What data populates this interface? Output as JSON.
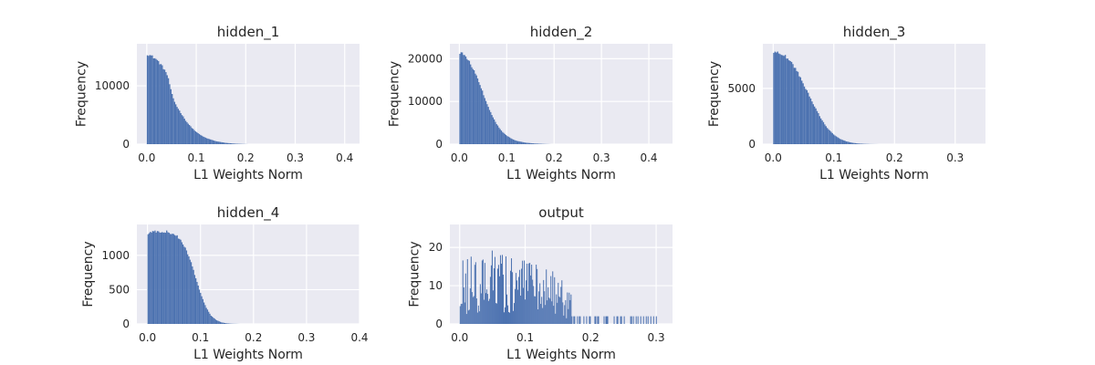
{
  "colors": {
    "plot_bg": "#EAEAF2",
    "grid": "#FFFFFF",
    "bar": "#4C72B0",
    "text": "#262626"
  },
  "chart_data": [
    {
      "type": "bar",
      "title": "hidden_1",
      "xlabel": "L1 Weights Norm",
      "ylabel": "Frequency",
      "xlim": [
        -0.02,
        0.43
      ],
      "ylim": [
        0,
        17200
      ],
      "xticks": [
        "0.0",
        "0.1",
        "0.2",
        "0.3",
        "0.4"
      ],
      "yticks": [
        "0",
        "10000"
      ],
      "grid": true,
      "histogram": {
        "bin_width": 0.0025,
        "x": [
          0,
          0.01,
          0.02,
          0.03,
          0.04,
          0.045,
          0.05,
          0.055,
          0.06,
          0.07,
          0.08,
          0.09,
          0.1,
          0.11,
          0.12,
          0.14,
          0.16,
          0.18,
          0.2,
          0.205
        ],
        "y": [
          15500,
          15100,
          14500,
          13500,
          12200,
          10800,
          8800,
          7500,
          6600,
          5200,
          3900,
          2900,
          2100,
          1500,
          1050,
          500,
          220,
          80,
          20,
          0
        ]
      }
    },
    {
      "type": "bar",
      "title": "hidden_2",
      "xlabel": "L1 Weights Norm",
      "ylabel": "Frequency",
      "xlim": [
        -0.02,
        0.45
      ],
      "ylim": [
        0,
        23500
      ],
      "xticks": [
        "0.0",
        "0.1",
        "0.2",
        "0.3",
        "0.4"
      ],
      "yticks": [
        "0",
        "10000",
        "20000"
      ],
      "grid": true,
      "histogram": {
        "bin_width": 0.0025,
        "x": [
          0,
          0.01,
          0.02,
          0.03,
          0.04,
          0.05,
          0.06,
          0.07,
          0.08,
          0.09,
          0.1,
          0.11,
          0.12,
          0.14,
          0.16,
          0.18,
          0.19,
          0.195
        ],
        "y": [
          21500,
          21000,
          19500,
          17500,
          15000,
          12000,
          9000,
          6500,
          4500,
          3000,
          2000,
          1300,
          800,
          350,
          150,
          50,
          15,
          0
        ]
      }
    },
    {
      "type": "bar",
      "title": "hidden_3",
      "xlabel": "L1 Weights Norm",
      "ylabel": "Frequency",
      "xlim": [
        -0.017,
        0.35
      ],
      "ylim": [
        0,
        9000
      ],
      "xticks": [
        "0.0",
        "0.1",
        "0.2",
        "0.3"
      ],
      "yticks": [
        "0",
        "5000"
      ],
      "grid": true,
      "histogram": {
        "bin_width": 0.0021,
        "x": [
          0,
          0.01,
          0.02,
          0.03,
          0.04,
          0.05,
          0.06,
          0.07,
          0.08,
          0.09,
          0.1,
          0.11,
          0.12,
          0.13,
          0.14,
          0.15,
          0.16,
          0.17,
          0.175
        ],
        "y": [
          8300,
          8200,
          7900,
          7300,
          6500,
          5400,
          4300,
          3200,
          2200,
          1400,
          850,
          480,
          260,
          130,
          60,
          30,
          12,
          4,
          0
        ]
      }
    },
    {
      "type": "bar",
      "title": "hidden_4",
      "xlabel": "L1 Weights Norm",
      "ylabel": "Frequency",
      "xlim": [
        -0.02,
        0.4
      ],
      "ylim": [
        0,
        1450
      ],
      "xticks": [
        "0.0",
        "0.1",
        "0.2",
        "0.3",
        "0.4"
      ],
      "yticks": [
        "0",
        "500",
        "1000"
      ],
      "grid": true,
      "histogram": {
        "bin_width": 0.0022,
        "x": [
          0,
          0.01,
          0.02,
          0.03,
          0.04,
          0.05,
          0.06,
          0.07,
          0.08,
          0.09,
          0.1,
          0.11,
          0.12,
          0.13,
          0.14,
          0.15,
          0.16,
          0.17,
          0.175
        ],
        "y": [
          1320,
          1340,
          1350,
          1350,
          1340,
          1310,
          1250,
          1130,
          950,
          700,
          450,
          250,
          120,
          55,
          22,
          8,
          3,
          1,
          0
        ]
      }
    },
    {
      "type": "bar",
      "title": "output",
      "xlabel": "L1 Weights Norm",
      "ylabel": "Frequency",
      "xlim": [
        -0.015,
        0.325
      ],
      "ylim": [
        0,
        26
      ],
      "xticks": [
        "0.0",
        "0.1",
        "0.2",
        "0.3"
      ],
      "yticks": [
        "0",
        "10",
        "20"
      ],
      "grid": true,
      "histogram": {
        "bin_width": 0.0014,
        "x": [
          0,
          0.02,
          0.04,
          0.06,
          0.08,
          0.1,
          0.12,
          0.14,
          0.16,
          0.18,
          0.19,
          0.2,
          0.22,
          0.24,
          0.26,
          0.28,
          0.3
        ],
        "y": [
          9,
          10,
          11,
          10.5,
          10,
          10,
          9,
          8,
          6,
          3,
          2,
          1.2,
          0.8,
          0.6,
          0.5,
          0.4,
          0.2
        ]
      }
    }
  ]
}
